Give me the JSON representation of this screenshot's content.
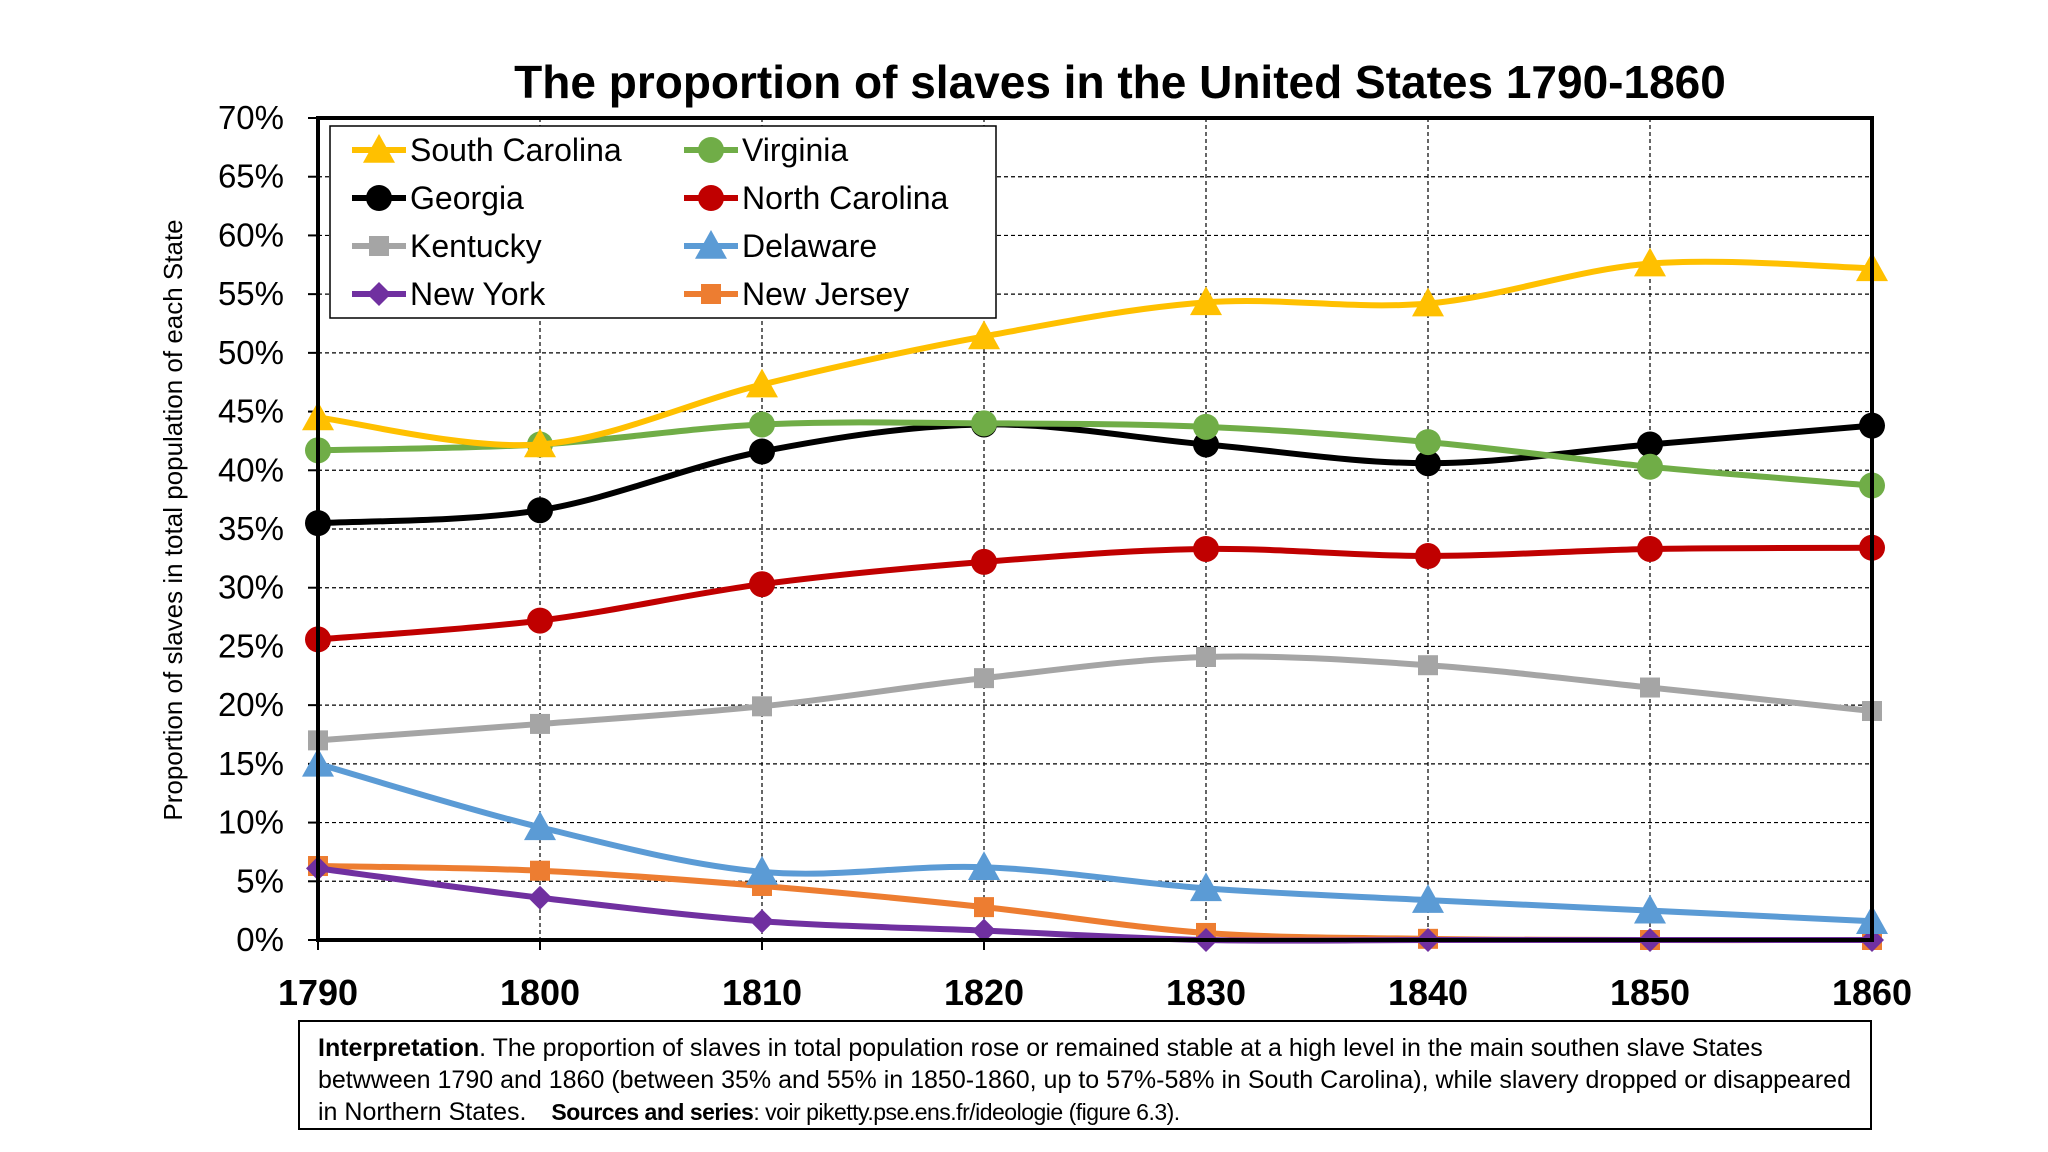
{
  "chart_data": {
    "type": "line",
    "title": "The proportion of slaves in the United States 1790-1860",
    "ylabel": "Proportion of slaves in total population of each State",
    "xlabel": "",
    "x": [
      1790,
      1800,
      1810,
      1820,
      1830,
      1840,
      1850,
      1860
    ],
    "x_tick_labels": [
      "1790",
      "1800",
      "1810",
      "1820",
      "1830",
      "1840",
      "1850",
      "1860"
    ],
    "ylim": [
      0,
      70
    ],
    "y_tick_labels": [
      "0%",
      "5%",
      "10%",
      "15%",
      "20%",
      "25%",
      "30%",
      "35%",
      "40%",
      "45%",
      "50%",
      "55%",
      "60%",
      "65%",
      "70%"
    ],
    "grid": true,
    "legend_position": "top-left",
    "series": [
      {
        "name": "South Carolina",
        "color": "#FFC000",
        "marker": "triangle",
        "values": [
          44.5,
          42.2,
          47.3,
          51.4,
          54.3,
          54.2,
          57.6,
          57.2
        ]
      },
      {
        "name": "Virginia",
        "color": "#70AD47",
        "marker": "circle",
        "values": [
          41.7,
          42.2,
          43.9,
          44.0,
          43.7,
          42.4,
          40.3,
          38.7
        ]
      },
      {
        "name": "Georgia",
        "color": "#000000",
        "marker": "circle",
        "values": [
          35.5,
          36.6,
          41.6,
          43.9,
          42.2,
          40.6,
          42.2,
          43.8
        ]
      },
      {
        "name": "North Carolina",
        "color": "#C00000",
        "marker": "circle",
        "values": [
          25.6,
          27.2,
          30.3,
          32.2,
          33.3,
          32.7,
          33.3,
          33.4
        ]
      },
      {
        "name": "Kentucky",
        "color": "#A5A5A5",
        "marker": "square",
        "values": [
          17.0,
          18.4,
          19.9,
          22.3,
          24.1,
          23.4,
          21.5,
          19.5
        ]
      },
      {
        "name": "Delaware",
        "color": "#5B9BD5",
        "marker": "triangle",
        "values": [
          15.0,
          9.6,
          5.8,
          6.2,
          4.4,
          3.4,
          2.5,
          1.6
        ]
      },
      {
        "name": "New York",
        "color": "#7030A0",
        "marker": "diamond",
        "values": [
          6.1,
          3.6,
          1.6,
          0.8,
          0.0,
          0.0,
          0.0,
          0.0
        ]
      },
      {
        "name": "New Jersey",
        "color": "#ED7D31",
        "marker": "square",
        "values": [
          6.3,
          5.9,
          4.6,
          2.8,
          0.6,
          0.1,
          0.0,
          0.0
        ]
      }
    ]
  },
  "note": {
    "label": "Interpretation",
    "text": ". The proportion of slaves in total population rose or remained stable at a high level in the main southen slave States betwween 1790 and 1860 (between 35% and 55% in 1850-1860, up to 57%-58% in South Carolina), while slavery dropped or disappeared in Northern States.",
    "sources_label": "Sources and series",
    "sources_text": ": voir piketty.pse.ens.fr/ideologie (figure 6.3)."
  }
}
